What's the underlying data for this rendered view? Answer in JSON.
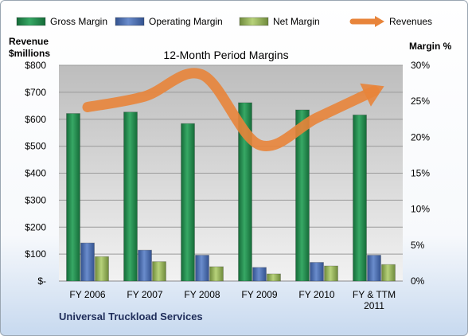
{
  "chart_data": {
    "type": "bar",
    "title": "12-Month Period Margins",
    "ylabel_left": [
      "Revenue",
      "$millions"
    ],
    "ylabel_right": "Margin %",
    "footer": "Universal Truckload Services",
    "categories": [
      "FY 2006",
      "FY 2007",
      "FY 2008",
      "FY 2009",
      "FY 2010",
      "FY & TTM 2011"
    ],
    "left_axis": {
      "min": 0,
      "max": 800,
      "ticks": [
        "$-",
        "$100",
        "$200",
        "$300",
        "$400",
        "$500",
        "$600",
        "$700",
        "$800"
      ]
    },
    "right_axis": {
      "min": 0,
      "max": 30,
      "ticks": [
        "0%",
        "5%",
        "10%",
        "15%",
        "20%",
        "25%",
        "30%"
      ]
    },
    "series": [
      {
        "name": "Gross Margin",
        "axis": "right",
        "color": "#1f8a4c",
        "values": [
          23.3,
          23.5,
          21.9,
          24.8,
          23.8,
          23.1
        ]
      },
      {
        "name": "Operating Margin",
        "axis": "right",
        "color": "#4a6fb5",
        "values": [
          5.3,
          4.3,
          3.6,
          1.9,
          2.6,
          3.6
        ]
      },
      {
        "name": "Net Margin",
        "axis": "right",
        "color": "#9bbb59",
        "values": [
          3.4,
          2.7,
          2.0,
          1.0,
          2.1,
          2.3
        ]
      },
      {
        "name": "Revenues",
        "axis": "left",
        "type": "line",
        "color": "#e8843a",
        "values": [
          645,
          685,
          765,
          505,
          605,
          705
        ]
      }
    ],
    "grid": "horizontal",
    "legend_position": "top"
  }
}
